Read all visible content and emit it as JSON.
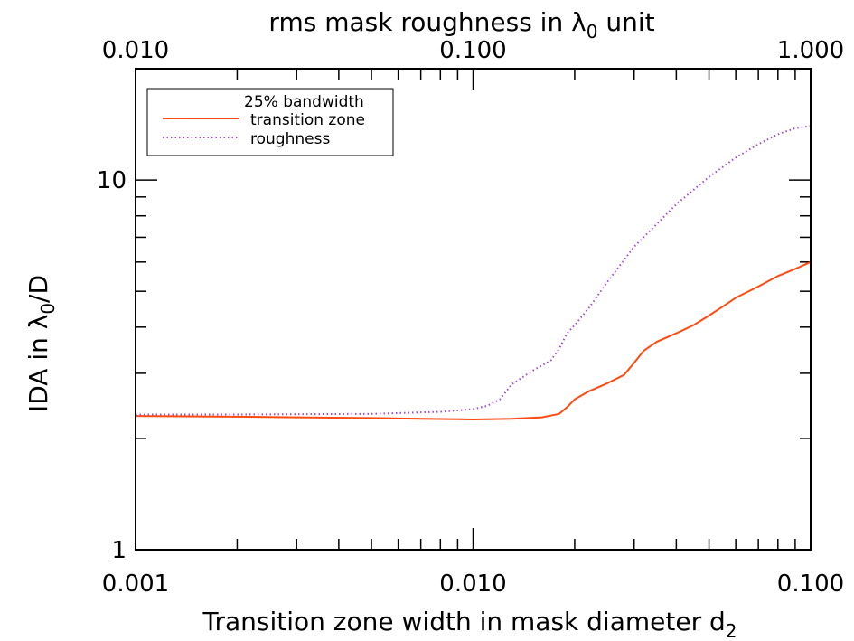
{
  "chart_data": {
    "type": "line",
    "title": "",
    "legend": {
      "placement": "top-left",
      "header": "25% bandwidth",
      "entries": [
        "transition zone",
        "roughness"
      ]
    },
    "x_axis": {
      "label_main": "Transition zone width in mask diameter d",
      "label_sub": "2",
      "scale": "log",
      "range": [
        0.001,
        0.1
      ],
      "tick_labels": [
        "0.001",
        "0.010",
        "0.100"
      ]
    },
    "x2_axis": {
      "label_main": "rms mask roughness in λ",
      "label_sub": "0",
      "label_suffix": " unit",
      "scale": "log",
      "range": [
        0.01,
        1.0
      ],
      "tick_labels": [
        "0.010",
        "0.100",
        "1.000"
      ]
    },
    "y_axis": {
      "label_main": "IDA in λ",
      "label_sub": "0",
      "label_suffix": "/D",
      "scale": "log",
      "range": [
        1,
        20
      ],
      "tick_labels": [
        "1",
        "10"
      ]
    },
    "series": [
      {
        "name": "transition zone",
        "axis": "bottom",
        "color": "#ff4a10",
        "style": "solid",
        "x": [
          0.001,
          0.002,
          0.003,
          0.005,
          0.007,
          0.01,
          0.013,
          0.016,
          0.018,
          0.019,
          0.02,
          0.022,
          0.025,
          0.028,
          0.03,
          0.032,
          0.035,
          0.04,
          0.045,
          0.05,
          0.055,
          0.06,
          0.07,
          0.08,
          0.09,
          0.1
        ],
        "y": [
          2.3,
          2.29,
          2.28,
          2.27,
          2.26,
          2.25,
          2.26,
          2.28,
          2.33,
          2.43,
          2.55,
          2.68,
          2.82,
          2.97,
          3.2,
          3.45,
          3.65,
          3.85,
          4.05,
          4.3,
          4.55,
          4.8,
          5.15,
          5.5,
          5.75,
          6.0
        ]
      },
      {
        "name": "roughness",
        "axis": "top",
        "color": "#a64ad1",
        "style": "dotted",
        "x": [
          0.01,
          0.02,
          0.05,
          0.08,
          0.1,
          0.11,
          0.12,
          0.13,
          0.15,
          0.17,
          0.18,
          0.19,
          0.2,
          0.22,
          0.25,
          0.3,
          0.35,
          0.4,
          0.5,
          0.6,
          0.7,
          0.8,
          0.9,
          1.0
        ],
        "y": [
          2.32,
          2.32,
          2.33,
          2.36,
          2.4,
          2.45,
          2.55,
          2.8,
          3.05,
          3.25,
          3.5,
          3.85,
          4.05,
          4.5,
          5.3,
          6.6,
          7.6,
          8.6,
          10.2,
          11.5,
          12.5,
          13.3,
          13.8,
          14.0
        ]
      }
    ]
  }
}
